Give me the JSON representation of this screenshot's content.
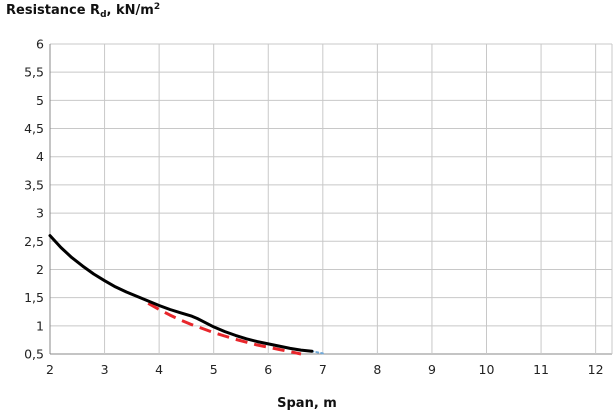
{
  "chart_data": {
    "type": "line",
    "ylabel": {
      "prefix": "Resistance R",
      "sub": "d",
      "mid": ", kN/m",
      "sup": "2"
    },
    "xlabel": "Span, m",
    "xlim": [
      2,
      12.3
    ],
    "ylim": [
      0.5,
      6
    ],
    "x_ticks": [
      "2",
      "3",
      "4",
      "5",
      "6",
      "7",
      "8",
      "9",
      "10",
      "11",
      "12"
    ],
    "y_ticks": [
      "0,5",
      "1",
      "1,5",
      "2",
      "2,5",
      "3",
      "3,5",
      "4",
      "4,5",
      "5",
      "5,5",
      "6"
    ],
    "grid": true,
    "series": [
      {
        "color": "#000000",
        "style": "solid",
        "x": [
          2.0,
          2.2,
          2.4,
          2.6,
          2.8,
          3.0,
          3.2,
          3.4,
          3.6,
          3.8,
          4.0,
          4.2,
          4.4,
          4.6,
          4.7,
          4.8,
          5.0,
          5.2,
          5.4,
          5.6,
          5.8,
          6.0,
          6.2,
          6.4,
          6.6,
          6.8
        ],
        "y": [
          2.6,
          2.39,
          2.21,
          2.06,
          1.92,
          1.8,
          1.69,
          1.6,
          1.52,
          1.44,
          1.36,
          1.29,
          1.23,
          1.17,
          1.13,
          1.08,
          0.98,
          0.9,
          0.83,
          0.77,
          0.72,
          0.68,
          0.64,
          0.6,
          0.57,
          0.55
        ]
      },
      {
        "color": "#e8262b",
        "style": "dashed",
        "x": [
          3.8,
          4.0,
          4.2,
          4.4,
          4.6,
          4.8,
          5.0,
          5.2,
          5.4,
          5.6,
          5.8,
          6.0,
          6.2,
          6.4,
          6.6
        ],
        "y": [
          1.4,
          1.29,
          1.19,
          1.1,
          1.02,
          0.95,
          0.88,
          0.82,
          0.76,
          0.71,
          0.66,
          0.62,
          0.58,
          0.54,
          0.5
        ]
      },
      {
        "color": "#6fa8d8",
        "style": "dotted",
        "x": [
          6.7,
          6.8,
          6.9,
          7.0
        ],
        "y": [
          0.56,
          0.55,
          0.53,
          0.51
        ]
      }
    ]
  }
}
